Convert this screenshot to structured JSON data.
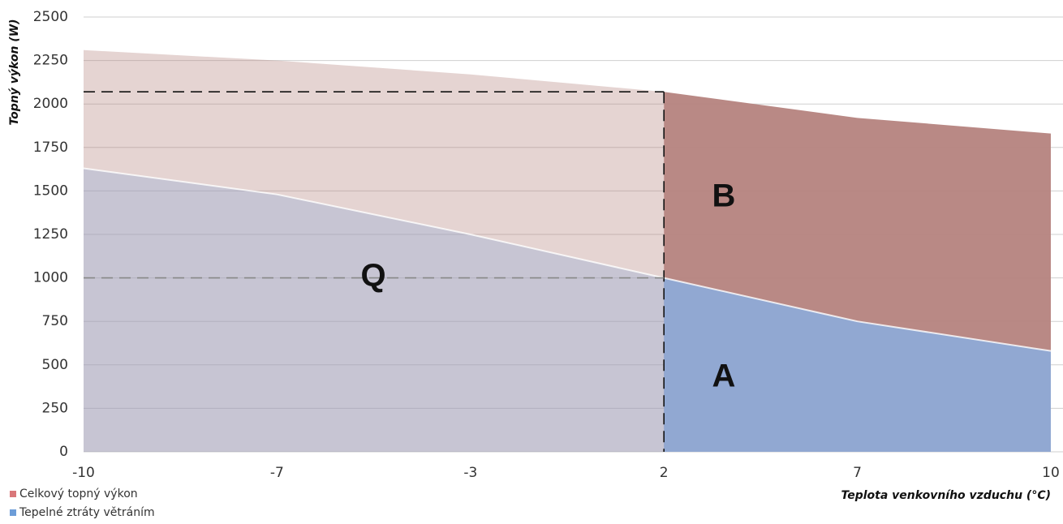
{
  "chart_data": {
    "type": "area",
    "categories": [
      "-10",
      "-7",
      "-3",
      "2",
      "7",
      "10"
    ],
    "series": [
      {
        "name": "Celkový topný výkon",
        "color": "#b5837e",
        "values": [
          2310,
          2250,
          2170,
          2070,
          1920,
          1830
        ]
      },
      {
        "name": "Tepelné ztráty větráním",
        "color": "#8eaad6",
        "values": [
          1630,
          1480,
          1250,
          1000,
          750,
          580
        ]
      }
    ],
    "ylim": [
      0,
      2500
    ],
    "yticks": [
      0,
      250,
      500,
      750,
      1000,
      1250,
      1500,
      1750,
      2000,
      2250,
      2500
    ],
    "grid": true,
    "x_label": "Teplota venkovního vzduchu (°C)",
    "y_label": "Topný výkon (W)",
    "reference_lines": [
      {
        "y": 2070,
        "x": "2"
      },
      {
        "y": 1000,
        "x": "2"
      }
    ],
    "annotations": [
      "Q",
      "B",
      "A"
    ],
    "legend": "bottom-left"
  }
}
